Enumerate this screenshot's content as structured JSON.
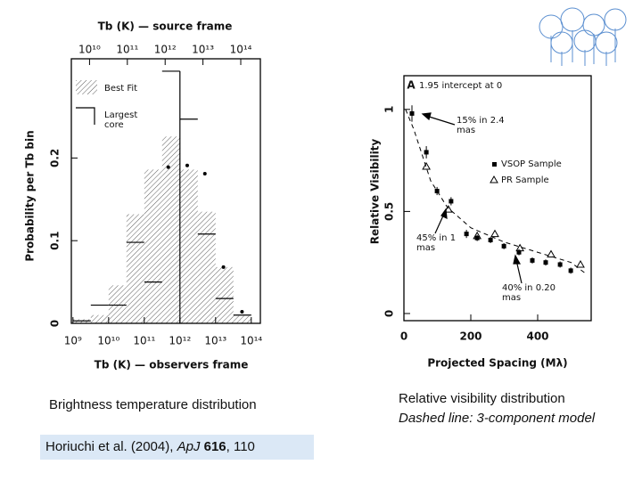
{
  "chart_data": [
    {
      "type": "histogram",
      "title": "Tb (K) — source frame",
      "xlabel": "Tb (K) — observers frame",
      "ylabel": "Probability per Tb bin",
      "xscale": "log",
      "xlim": [
        900000000,
        180000000000000
      ],
      "xticks": [
        {
          "value": 1000000000,
          "label": "10⁹"
        },
        {
          "value": 10000000000,
          "label": "10¹⁰"
        },
        {
          "value": 100000000000,
          "label": "10¹¹"
        },
        {
          "value": 1000000000000,
          "label": "10¹²"
        },
        {
          "value": 10000000000000,
          "label": "10¹³"
        },
        {
          "value": 100000000000000,
          "label": "10¹⁴"
        }
      ],
      "x2lim": [
        3300000000,
        330000000000000
      ],
      "x2ticks": [
        {
          "value": 10000000000,
          "label": "10¹⁰"
        },
        {
          "value": 100000000000,
          "label": "10¹¹"
        },
        {
          "value": 1000000000000,
          "label": "10¹²"
        },
        {
          "value": 10000000000000,
          "label": "10¹³"
        },
        {
          "value": 100000000000000,
          "label": "10¹⁴"
        }
      ],
      "ylim": [
        0,
        0.32
      ],
      "yticks": [
        0,
        0.1,
        0.2
      ],
      "bins": [
        1000000000,
        3162000000,
        10000000000,
        31620000000,
        100000000000,
        316200000000,
        1000000000000,
        3162000000000,
        10000000000000,
        31620000000000,
        100000000000000
      ],
      "series": [
        {
          "name": "Best Fit",
          "style": "hatched",
          "values": [
            0.005,
            0.01,
            0.046,
            0.132,
            0.186,
            0.226,
            0.186,
            0.135,
            0.068,
            0.009
          ]
        },
        {
          "name": "Largest core",
          "style": "step",
          "values": [
            0.003,
            0.022,
            0.022,
            0.098,
            0.05,
            0.305,
            0.247,
            0.108,
            0.03,
            0.01
          ]
        }
      ],
      "points": {
        "x": [
          470000000000,
          1600000000000,
          5000000000000,
          16600000000000,
          55000000000000
        ],
        "values": [
          0.189,
          0.191,
          0.181,
          0.068,
          0.014
        ]
      }
    },
    {
      "type": "scatter",
      "xlabel": "Projected Spacing (Mλ)",
      "ylabel": "Relative Visibility",
      "xlim": [
        0,
        560
      ],
      "xticks": [
        0,
        200,
        400
      ],
      "ylim": [
        -0.035,
        1.165
      ],
      "yticks": [
        0,
        0.5,
        1
      ],
      "panel_label": "A",
      "annotations": [
        "1.95 intercept at 0",
        "15% in 2.4 mas",
        "45% in 1 mas",
        "40% in 0.20 mas"
      ],
      "series": [
        {
          "name": "VSOP Sample",
          "marker": "square",
          "color": "#000000",
          "x": [
            24,
            67,
            99,
            141,
            187,
            219,
            259,
            299,
            344,
            384,
            424,
            467,
            499
          ],
          "values": [
            0.98,
            0.79,
            0.6,
            0.55,
            0.39,
            0.37,
            0.36,
            0.33,
            0.3,
            0.26,
            0.25,
            0.24,
            0.21
          ],
          "errors": [
            0.04,
            0.03,
            0.02,
            0.02,
            0.02,
            0.015,
            0.015,
            0.015,
            0.015,
            0.015,
            0.015,
            0.015,
            0.015
          ]
        },
        {
          "name": "PR Sample",
          "marker": "triangle",
          "color": "#000000",
          "x": [
            67,
            133,
            219,
            272,
            347,
            440,
            528
          ],
          "values": [
            0.72,
            0.51,
            0.38,
            0.39,
            0.32,
            0.29,
            0.24
          ]
        },
        {
          "marker": "dashed-line",
          "color": "#000000",
          "x": [
            5,
            30,
            80,
            130,
            200,
            300,
            400,
            500,
            540
          ],
          "values": [
            1.0,
            0.9,
            0.65,
            0.52,
            0.42,
            0.35,
            0.3,
            0.25,
            0.2
          ]
        }
      ]
    }
  ],
  "captions": {
    "left": "Brightness temperature distribution",
    "citation": {
      "authors": "Horiuchi et al. (2004),",
      "journal": "ApJ",
      "volume": "616",
      "pages": ", 110"
    },
    "right_title": "Relative visibility distribution",
    "right_note": "Dashed line: 3-component model"
  }
}
